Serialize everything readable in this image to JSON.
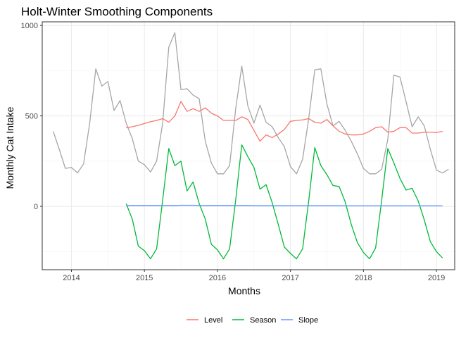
{
  "chart_data": {
    "type": "line",
    "title": "Holt-Winter Smoothing Components",
    "xlabel": "Months",
    "ylabel": "Monthly Cat Intake",
    "x_start": 2013.75,
    "x_step": 0.08333333,
    "xlim": [
      2013.6,
      2019.25
    ],
    "ylim": [
      -350,
      1020
    ],
    "x_ticks": [
      {
        "value": 2014,
        "label": "2014"
      },
      {
        "value": 2015,
        "label": "2015"
      },
      {
        "value": 2016,
        "label": "2016"
      },
      {
        "value": 2017,
        "label": "2017"
      },
      {
        "value": 2018,
        "label": "2018"
      },
      {
        "value": 2019,
        "label": "2019"
      }
    ],
    "y_ticks": [
      {
        "value": 0,
        "label": "0"
      },
      {
        "value": 500,
        "label": "500"
      },
      {
        "value": 1000,
        "label": "1000"
      }
    ],
    "grid": true,
    "legend_position": "bottom",
    "observed": {
      "color": "#a6a6a6",
      "start_index": 0,
      "values": [
        415,
        315,
        210,
        215,
        185,
        235,
        460,
        760,
        665,
        690,
        530,
        585,
        460,
        375,
        250,
        230,
        190,
        250,
        460,
        880,
        960,
        645,
        650,
        615,
        595,
        360,
        240,
        180,
        180,
        225,
        540,
        775,
        555,
        460,
        560,
        465,
        440,
        380,
        330,
        220,
        180,
        260,
        485,
        755,
        760,
        565,
        445,
        470,
        420,
        360,
        290,
        210,
        180,
        180,
        205,
        370,
        725,
        715,
        580,
        440,
        495,
        445,
        315,
        200,
        185,
        205
      ]
    },
    "series": [
      {
        "name": "Level",
        "color": "#f8766d",
        "start_index": 12,
        "values": [
          435,
          440,
          448,
          458,
          468,
          475,
          485,
          465,
          500,
          580,
          525,
          540,
          525,
          545,
          515,
          500,
          475,
          475,
          475,
          495,
          480,
          420,
          360,
          395,
          380,
          400,
          425,
          470,
          475,
          478,
          485,
          465,
          460,
          480,
          445,
          415,
          400,
          395,
          395,
          400,
          415,
          435,
          440,
          410,
          415,
          435,
          435,
          405,
          405,
          410,
          410,
          408,
          415
        ]
      },
      {
        "name": "Season",
        "color": "#00ba38",
        "start_index": 12,
        "values": [
          15,
          -70,
          -220,
          -245,
          -290,
          -235,
          35,
          320,
          225,
          250,
          85,
          135,
          15,
          -70,
          -210,
          -240,
          -290,
          -235,
          35,
          340,
          275,
          215,
          95,
          120,
          20,
          -100,
          -225,
          -260,
          -290,
          -235,
          30,
          325,
          225,
          175,
          115,
          110,
          25,
          -100,
          -200,
          -255,
          -290,
          -230,
          35,
          320,
          240,
          155,
          90,
          100,
          30,
          -75,
          -195,
          -250,
          -285
        ]
      },
      {
        "name": "Slope",
        "color": "#619cff",
        "start_index": 12,
        "values": [
          5,
          5,
          5,
          5,
          5,
          5,
          5,
          5,
          5,
          6,
          6,
          6,
          5,
          5,
          5,
          5,
          5,
          5,
          5,
          5,
          5,
          4,
          4,
          4,
          4,
          4,
          4,
          4,
          4,
          4,
          4,
          4,
          4,
          4,
          4,
          4,
          3,
          3,
          3,
          3,
          3,
          3,
          3,
          3,
          3,
          3,
          3,
          3,
          3,
          3,
          3,
          3,
          3
        ]
      }
    ]
  }
}
